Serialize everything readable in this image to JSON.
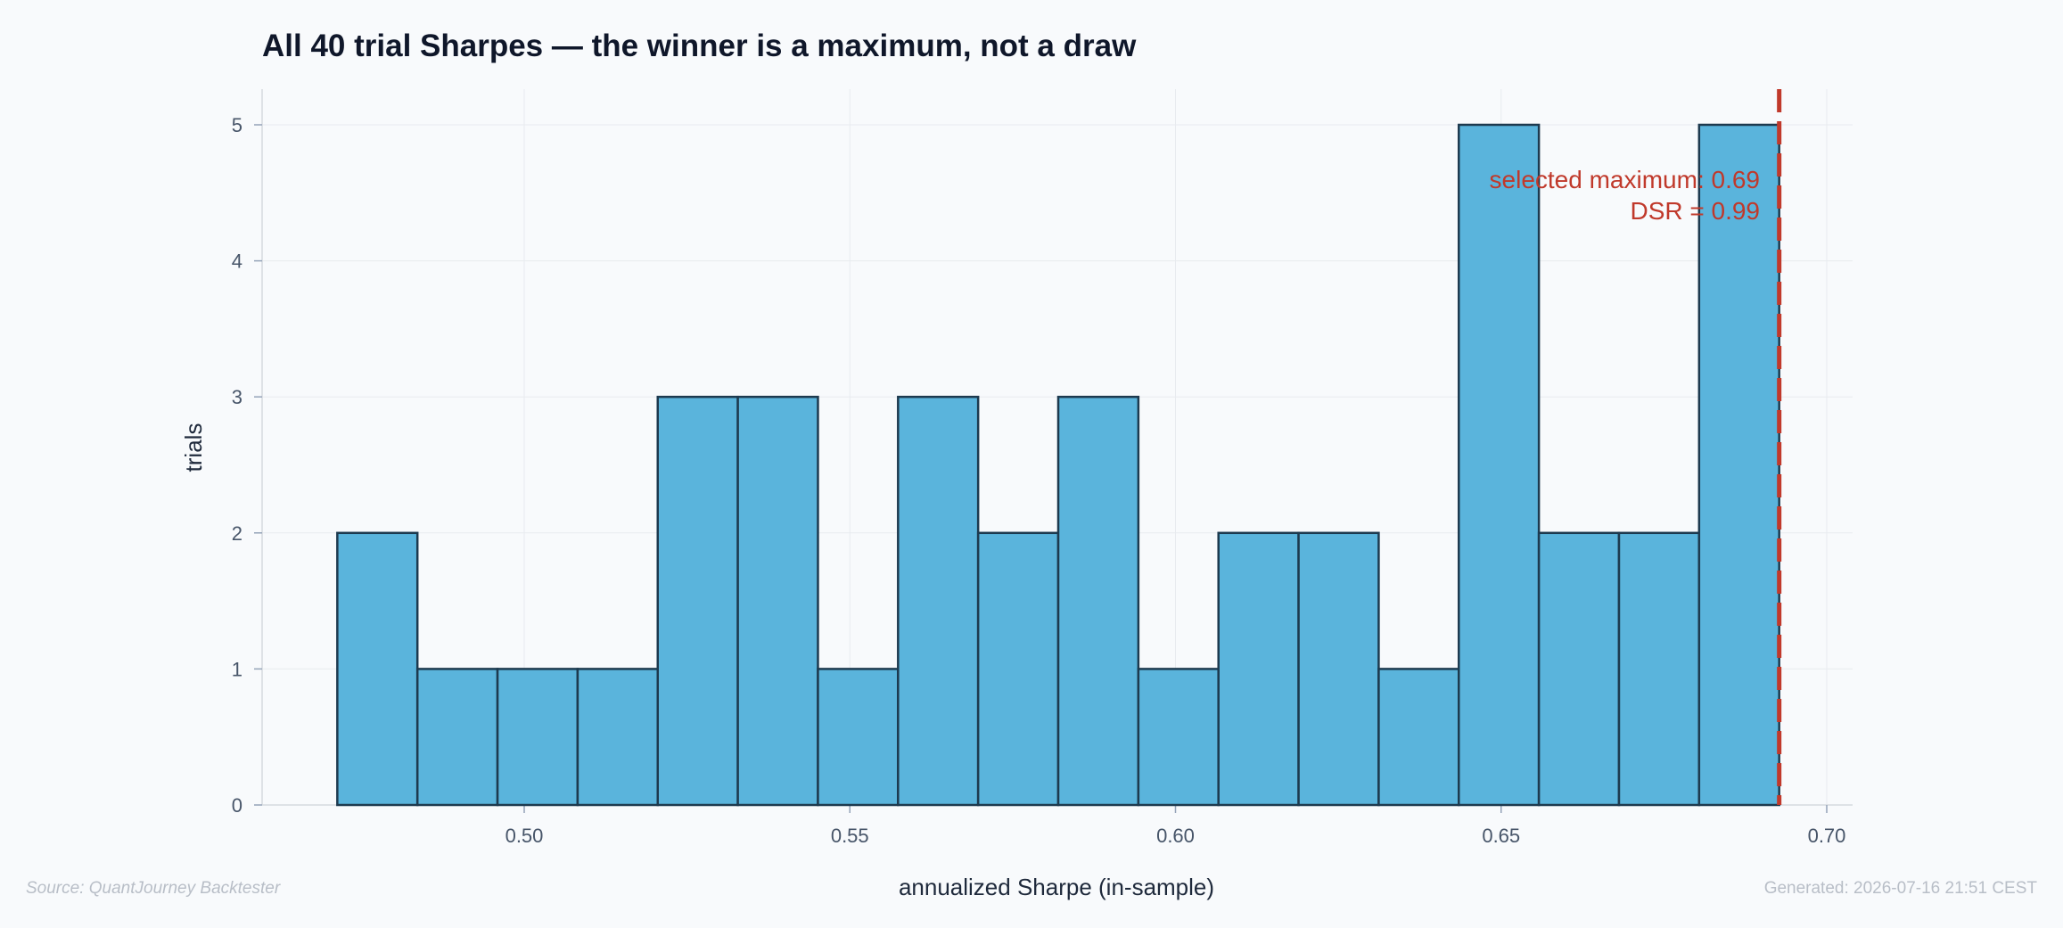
{
  "chart_data": {
    "type": "bar",
    "title": "All 40 trial Sharpes — the winner is a maximum, not a draw",
    "xlabel": "annualized Sharpe (in-sample)",
    "ylabel": "trials",
    "xlim": [
      0.4595,
      0.7085
    ],
    "ylim": [
      0,
      5.25
    ],
    "x_ticks": [
      0.5,
      0.55,
      0.6,
      0.65,
      0.7
    ],
    "x_tick_labels": [
      "0.50",
      "0.55",
      "0.60",
      "0.65",
      "0.70"
    ],
    "y_ticks": [
      0,
      1,
      2,
      3,
      4,
      5
    ],
    "y_tick_labels": [
      "0",
      "1",
      "2",
      "3",
      "4",
      "5"
    ],
    "bin_edges": [
      0.4713,
      0.4836,
      0.4959,
      0.5082,
      0.5205,
      0.5328,
      0.5451,
      0.5574,
      0.5697,
      0.582,
      0.5943,
      0.6066,
      0.6189,
      0.6312,
      0.6435,
      0.6558,
      0.6681,
      0.6804,
      0.6927
    ],
    "counts": [
      2,
      1,
      1,
      1,
      3,
      3,
      1,
      3,
      2,
      3,
      1,
      2,
      2,
      1,
      5,
      2,
      2,
      5
    ],
    "bar_color": "#5ab4dc",
    "bar_edge_color": "#1d3a4f",
    "grid": true,
    "marker_line": {
      "x": 0.6927,
      "color": "#c0392b",
      "style": "dashed"
    },
    "annotation": {
      "line1": "selected maximum: 0.69",
      "line2": "DSR = 0.99"
    }
  },
  "footer": {
    "source": "Source: QuantJourney Backtester",
    "generated": "Generated: 2026-07-16 21:51 CEST"
  }
}
